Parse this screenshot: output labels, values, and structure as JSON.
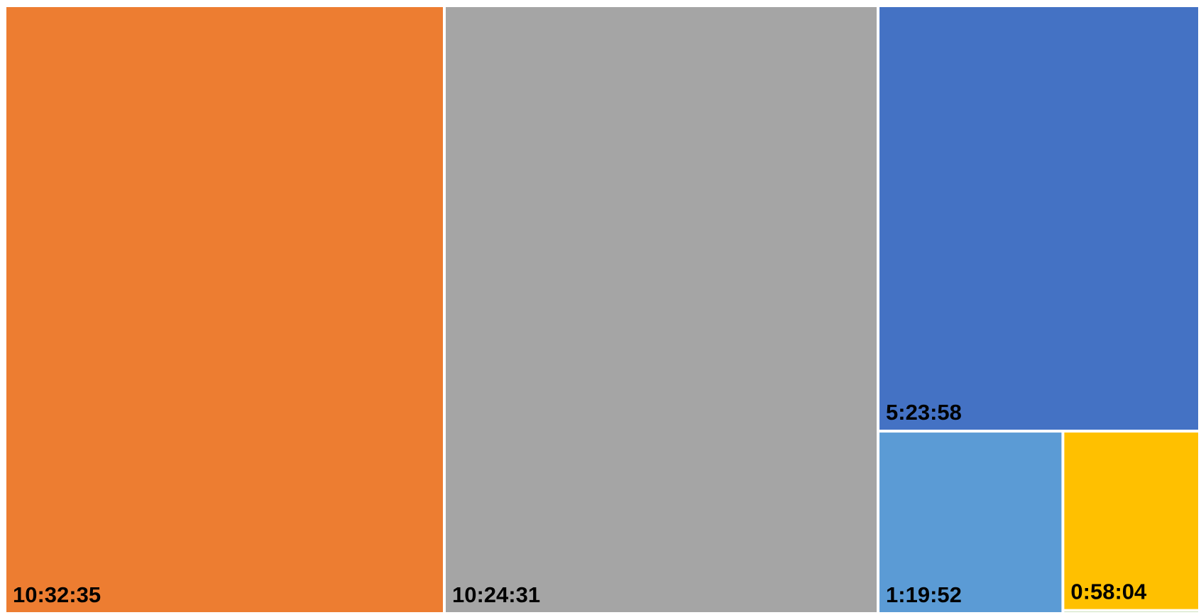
{
  "chart_data": {
    "type": "treemap",
    "title": "",
    "value_format": "h:mm:ss",
    "tiles": [
      {
        "label": "10:32:35",
        "value_seconds": 37955,
        "color": "#ED7D31"
      },
      {
        "label": "10:24:31",
        "value_seconds": 37471,
        "color": "#A5A5A5"
      },
      {
        "label": "5:23:58",
        "value_seconds": 19438,
        "color": "#4472C4"
      },
      {
        "label": "1:19:52",
        "value_seconds": 4792,
        "color": "#5B9BD5"
      },
      {
        "label": "0:58:04",
        "value_seconds": 3484,
        "color": "#FFC000"
      },
      {
        "label": "",
        "value_seconds": 60,
        "color": "#70AD47"
      }
    ],
    "grid": false,
    "legend": "none"
  }
}
